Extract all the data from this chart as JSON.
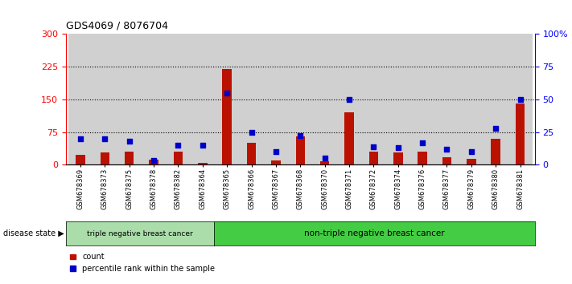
{
  "title": "GDS4069 / 8076704",
  "samples": [
    "GSM678369",
    "GSM678373",
    "GSM678375",
    "GSM678378",
    "GSM678382",
    "GSM678364",
    "GSM678365",
    "GSM678366",
    "GSM678367",
    "GSM678368",
    "GSM678370",
    "GSM678371",
    "GSM678372",
    "GSM678374",
    "GSM678376",
    "GSM678377",
    "GSM678379",
    "GSM678380",
    "GSM678381"
  ],
  "counts": [
    22,
    28,
    30,
    12,
    30,
    5,
    220,
    50,
    10,
    65,
    8,
    120,
    30,
    28,
    30,
    18,
    14,
    60,
    140
  ],
  "percentiles": [
    20,
    20,
    18,
    3,
    15,
    15,
    55,
    25,
    10,
    22,
    5,
    50,
    14,
    13,
    17,
    12,
    10,
    28,
    50
  ],
  "group1_label": "triple negative breast cancer",
  "group1_count": 6,
  "group2_label": "non-triple negative breast cancer",
  "ylim_left": [
    0,
    300
  ],
  "ylim_right": [
    0,
    100
  ],
  "yticks_left": [
    0,
    75,
    150,
    225,
    300
  ],
  "yticks_right": [
    0,
    25,
    50,
    75,
    100
  ],
  "bar_color": "#bb1100",
  "dot_color": "#0000cc",
  "col_bg_color": "#d0d0d0",
  "group1_color": "#aaddaa",
  "group2_color": "#44cc44",
  "legend_count_label": "count",
  "legend_pct_label": "percentile rank within the sample",
  "hgrid_yticks": [
    75,
    150,
    225
  ]
}
